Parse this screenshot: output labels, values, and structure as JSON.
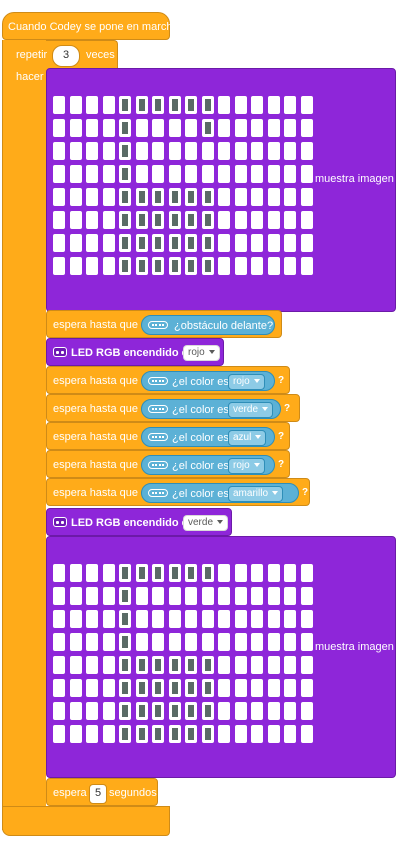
{
  "hat": {
    "label": "Cuando Codey se pone en marcha"
  },
  "repeat": {
    "label_before": "repetir",
    "count": "3",
    "label_after": "veces",
    "do_label": "hacer"
  },
  "show_image_1": {
    "label": "muestra imagen",
    "rows": [
      "0000111111000000",
      "0000100001000000",
      "0000100000000000",
      "0000100000000000",
      "0000111111000000",
      "0000111111000000",
      "0000111111000000",
      "0000111111000000"
    ]
  },
  "wait_obstacle": {
    "label": "espera hasta que",
    "condition": "¿obstáculo delante?"
  },
  "led_1": {
    "label": "LED RGB encendido en",
    "color": "rojo"
  },
  "wait_colors": [
    {
      "label": "espera hasta que",
      "condition": "¿el color es",
      "color": "rojo",
      "q": "?"
    },
    {
      "label": "espera hasta que",
      "condition": "¿el color es",
      "color": "verde",
      "q": "?"
    },
    {
      "label": "espera hasta que",
      "condition": "¿el color es",
      "color": "azul",
      "q": "?"
    },
    {
      "label": "espera hasta que",
      "condition": "¿el color es",
      "color": "rojo",
      "q": "?"
    },
    {
      "label": "espera hasta que",
      "condition": "¿el color es",
      "color": "amarillo",
      "q": "?"
    }
  ],
  "led_2": {
    "label": "LED RGB encendido en",
    "color": "verde"
  },
  "show_image_2": {
    "label": "muestra imagen",
    "rows": [
      "0000111111000000",
      "0000100000000000",
      "0000100000000000",
      "0000100000000000",
      "0000111111000000",
      "0000111111000000",
      "0000111111000000",
      "0000111111000000"
    ]
  },
  "wait_seconds": {
    "label_before": "espera",
    "value": "5",
    "label_after": "segundos"
  },
  "colors": {
    "events": "#ffab19",
    "led": "#8e26d9",
    "sensing": "#5cb1d6"
  }
}
